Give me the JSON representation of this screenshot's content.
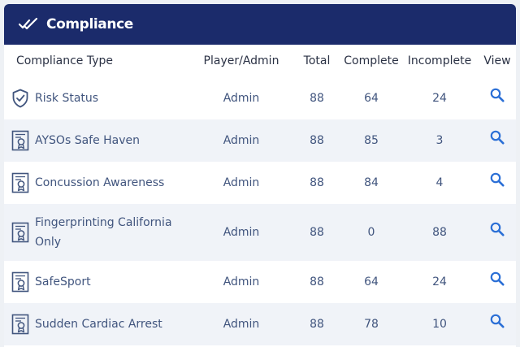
{
  "header": {
    "title": "Compliance",
    "icon": "double-check-icon"
  },
  "columns": {
    "type": "Compliance Type",
    "player_admin": "Player/Admin",
    "total": "Total",
    "complete": "Complete",
    "incomplete": "Incomplete",
    "view": "View"
  },
  "colors": {
    "header_bg": "#1b2b6b",
    "accent": "#2b6fd6",
    "text": "#41557e",
    "stripe": "#f0f3f8"
  },
  "rows": [
    {
      "type": "Risk Status",
      "icon": "shield-check-icon",
      "player_admin": "Admin",
      "total": "88",
      "complete": "64",
      "incomplete": "24"
    },
    {
      "type": "AYSOs Safe Haven",
      "icon": "certificate-icon",
      "player_admin": "Admin",
      "total": "88",
      "complete": "85",
      "incomplete": "3"
    },
    {
      "type": "Concussion Awareness",
      "icon": "certificate-icon",
      "player_admin": "Admin",
      "total": "88",
      "complete": "84",
      "incomplete": "4"
    },
    {
      "type": "Fingerprinting California Only",
      "icon": "certificate-icon",
      "player_admin": "Admin",
      "total": "88",
      "complete": "0",
      "incomplete": "88"
    },
    {
      "type": "SafeSport",
      "icon": "certificate-icon",
      "player_admin": "Admin",
      "total": "88",
      "complete": "64",
      "incomplete": "24"
    },
    {
      "type": "Sudden Cardiac Arrest",
      "icon": "certificate-icon",
      "player_admin": "Admin",
      "total": "88",
      "complete": "78",
      "incomplete": "10"
    }
  ]
}
